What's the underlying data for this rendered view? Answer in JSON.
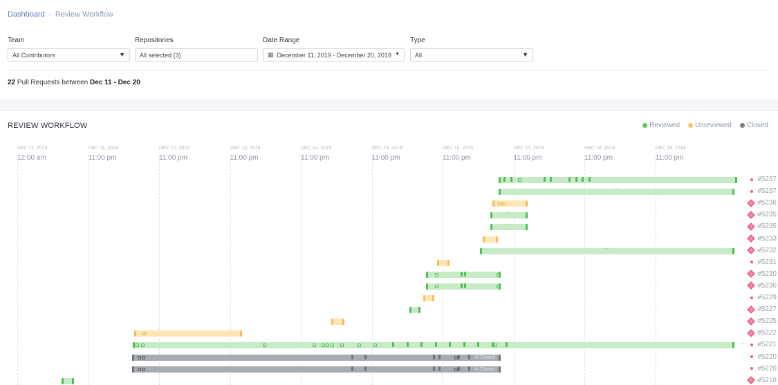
{
  "breadcrumb": {
    "home": "Dashboard",
    "separator": "›",
    "current": "Review Workflow"
  },
  "filters": {
    "team": {
      "label": "Team",
      "value": "All Contributors"
    },
    "repositories": {
      "label": "Repositories",
      "value": "All selected (3)"
    },
    "date_range": {
      "label": "Date Range",
      "value": "December 11, 2019 - December 20, 2019"
    },
    "type": {
      "label": "Type",
      "value": "All"
    }
  },
  "summary": {
    "count": "22",
    "middle": "Pull Requests between",
    "range": "Dec 11 - Dec 20"
  },
  "section_title": "REVIEW WORKFLOW",
  "legend": [
    {
      "label": "Reviewed",
      "color": "#5cc361"
    },
    {
      "label": "Unreviewed",
      "color": "#f7c566"
    },
    {
      "label": "Closed",
      "color": "#7d8086"
    }
  ],
  "axis": [
    {
      "date": "DEC 11, 2019",
      "time": "12:00 am"
    },
    {
      "date": "DEC 11, 2019",
      "time": "11:00 pm"
    },
    {
      "date": "DEC 12, 2019",
      "time": "11:00 pm"
    },
    {
      "date": "DEC 13, 2019",
      "time": "11:00 pm"
    },
    {
      "date": "DEC 14, 2019",
      "time": "11:00 pm"
    },
    {
      "date": "DEC 15, 2019",
      "time": "11:00 pm"
    },
    {
      "date": "DEC 16, 2019",
      "time": "11:00 pm"
    },
    {
      "date": "DEC 17, 2019",
      "time": "11:00 pm"
    },
    {
      "date": "DEC 18, 2019",
      "time": "11:00 pm"
    },
    {
      "date": "DEC 19, 2019",
      "time": "11:00 pm"
    }
  ],
  "closed_tag": "Closed",
  "rows": [
    {
      "pr": "#5237",
      "status": "reviewed",
      "marker": "dot",
      "start": 6.79,
      "end": 10.16,
      "trail": "···",
      "ticks": [
        0.07,
        0.17,
        0.63,
        0.72,
        0.99,
        1.08,
        1.17,
        1.27
      ],
      "squares": [
        0.27
      ]
    },
    {
      "pr": "#5237",
      "status": "reviewed",
      "marker": "dot",
      "start": 6.79,
      "end": 10.12,
      "ticks": [],
      "squares": [],
      "mid": true
    },
    {
      "pr": "#5236",
      "status": "unreviewed",
      "marker": "diamond",
      "start": 6.7,
      "end": 7.2,
      "ticks": [],
      "squares": [
        0.08,
        0.14
      ]
    },
    {
      "pr": "#5235",
      "status": "reviewed",
      "marker": "diamond",
      "start": 6.67,
      "end": 7.2,
      "ticks": [],
      "squares": [],
      "mid": true
    },
    {
      "pr": "#5235",
      "status": "reviewed",
      "marker": "diamond",
      "start": 6.67,
      "end": 7.2,
      "ticks": [],
      "squares": [],
      "mid": true
    },
    {
      "pr": "#5233",
      "status": "unreviewed",
      "marker": "diamond",
      "start": 6.57,
      "end": 6.78,
      "ticks": [],
      "squares": []
    },
    {
      "pr": "#5232",
      "status": "reviewed",
      "marker": "diamond",
      "start": 6.53,
      "end": 10.12,
      "ticks": [],
      "squares": [],
      "mid": true
    },
    {
      "pr": "#5231",
      "status": "unreviewed",
      "marker": "dot",
      "start": 5.92,
      "end": 6.1,
      "ticks": [],
      "squares": []
    },
    {
      "pr": "#5230",
      "status": "reviewed",
      "marker": "diamond",
      "start": 5.77,
      "end": 6.82,
      "ticks": [
        0.48,
        0.53
      ],
      "squares": [
        0.12,
        0.99
      ]
    },
    {
      "pr": "#5230",
      "status": "reviewed",
      "marker": "diamond",
      "start": 5.77,
      "end": 6.82,
      "ticks": [
        0.48,
        0.53
      ],
      "squares": [
        0.12,
        0.99
      ]
    },
    {
      "pr": "#5229",
      "status": "unreviewed",
      "marker": "dot",
      "start": 5.73,
      "end": 5.88,
      "ticks": [],
      "squares": []
    },
    {
      "pr": "#5227",
      "status": "reviewed",
      "marker": "diamond",
      "start": 5.53,
      "end": 5.69,
      "ticks": [],
      "squares": []
    },
    {
      "pr": "#5225",
      "status": "unreviewed",
      "marker": "diamond",
      "start": 4.43,
      "end": 4.61,
      "ticks": [],
      "squares": []
    },
    {
      "pr": "#5222",
      "status": "unreviewed",
      "marker": "diamond",
      "start": 1.65,
      "end": 3.17,
      "ticks": [],
      "squares": [
        0.12
      ]
    },
    {
      "pr": "#5221",
      "status": "reviewed",
      "marker": "dot",
      "start": 1.63,
      "end": 10.12,
      "trail": "···",
      "ticks": [
        3.66,
        3.86,
        4.06,
        4.26,
        4.46,
        4.66,
        4.86,
        5.06,
        5.26
      ],
      "squares": [
        0.04,
        0.12,
        1.83,
        2.54,
        2.66,
        2.72,
        2.79,
        2.93,
        3.17,
        3.39,
        5.09
      ]
    },
    {
      "pr": "#5220",
      "status": "closed",
      "marker": "dot",
      "start": 1.62,
      "end": 6.82,
      "ticks": [
        3.09,
        3.28,
        4.24,
        4.32,
        4.59,
        4.74
      ],
      "squares": [
        0.08,
        0.14,
        4.55
      ],
      "closed": true
    },
    {
      "pr": "#5220",
      "status": "closed",
      "marker": "dot",
      "start": 1.62,
      "end": 6.82,
      "ticks": [
        3.09,
        3.28,
        4.24,
        4.32,
        4.59,
        4.74
      ],
      "squares": [
        0.08,
        0.14,
        4.55
      ],
      "closed": true
    },
    {
      "pr": "#5218",
      "status": "reviewed",
      "marker": "diamond",
      "start": 0.62,
      "end": 0.8,
      "ticks": [],
      "squares": []
    }
  ]
}
